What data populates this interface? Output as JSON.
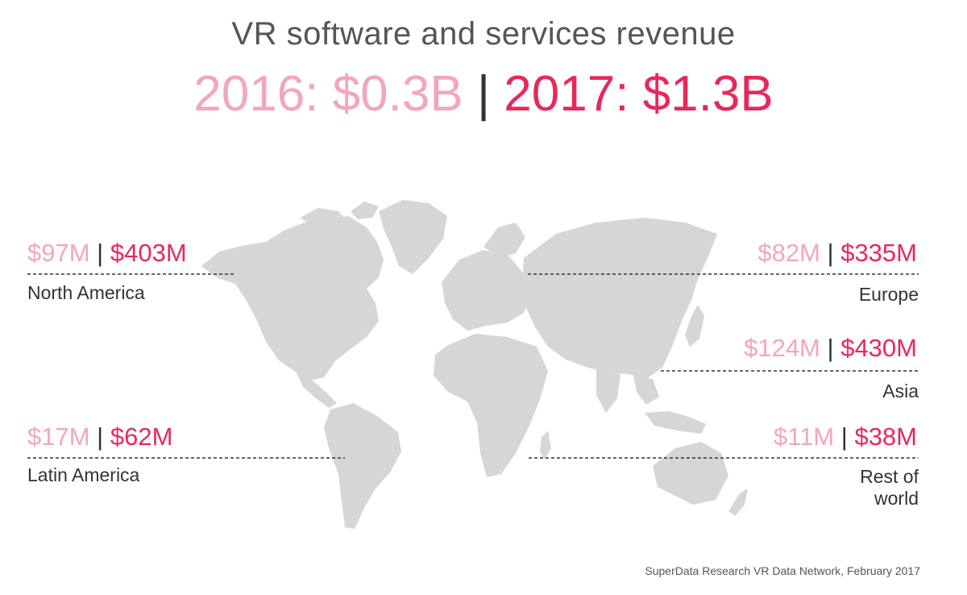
{
  "title": "VR software and services revenue",
  "headline": {
    "y2016": "2016: $0.3B",
    "separator": "|",
    "y2017": "2017: $1.3B"
  },
  "colors": {
    "pale": "#f2a6bc",
    "bold": "#e8285a",
    "land": "#d6d6d7",
    "text": "#333333"
  },
  "regions": {
    "north_america": {
      "name": "North America",
      "v2016": "$97M",
      "v2017": "$403M"
    },
    "latin_america": {
      "name": "Latin America",
      "v2016": "$17M",
      "v2017": "$62M"
    },
    "europe": {
      "name": "Europe",
      "v2016": "$82M",
      "v2017": "$335M"
    },
    "asia": {
      "name": "Asia",
      "v2016": "$124M",
      "v2017": "$430M"
    },
    "rest_of_world": {
      "name_line1": "Rest of",
      "name_line2": "world",
      "v2016": "$11M",
      "v2017": "$38M"
    }
  },
  "source": "SuperData Research VR Data Network, February 2017"
}
